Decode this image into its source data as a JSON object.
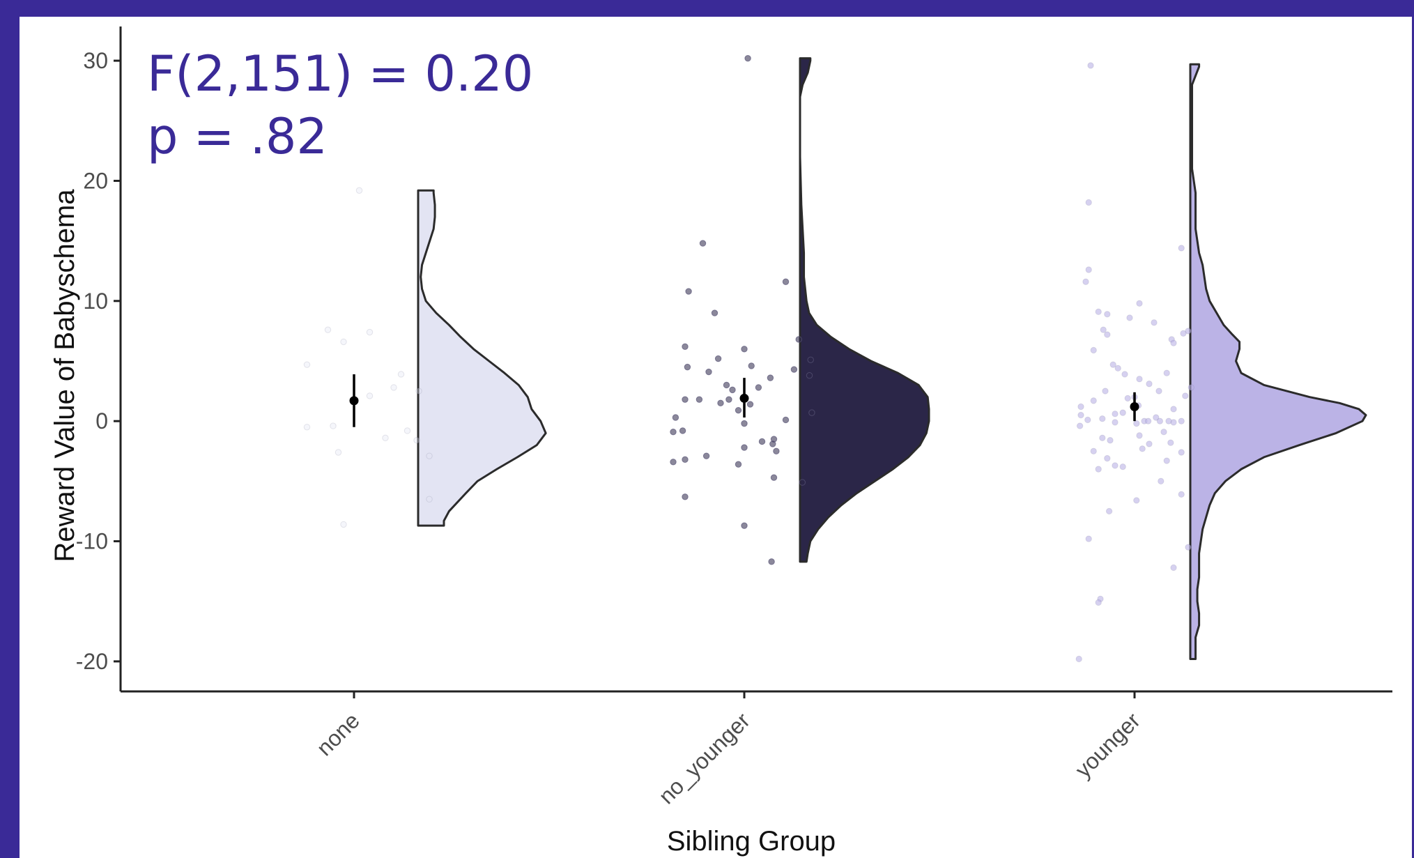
{
  "page": {
    "background": "#3a2a97",
    "panel_background": "#ffffff"
  },
  "chart_data": {
    "type": "raincloud",
    "annotation": {
      "line1": "F(2,151) = 0.20",
      "line2": "p = .82",
      "color": "#3a2a97"
    },
    "xlabel": "Sibling Group",
    "ylabel": "Reward Value of Babyschema",
    "ylim": [
      -22.5,
      32.5
    ],
    "yticks": [
      -20,
      -10,
      0,
      10,
      20,
      30
    ],
    "ytick_labels": [
      "-20",
      "-10",
      "0",
      "10",
      "20",
      "30"
    ],
    "categories": [
      "none",
      "no_younger",
      "younger"
    ],
    "grid": false,
    "series": [
      {
        "category": "none",
        "color": "#e3e4f3",
        "mean": 1.7,
        "ci": [
          -0.5,
          3.9
        ],
        "density": [
          [
            -8.7,
            0.2
          ],
          [
            -8.3,
            0.2
          ],
          [
            -7.5,
            0.24
          ],
          [
            -6,
            0.37
          ],
          [
            -5,
            0.46
          ],
          [
            -4,
            0.61
          ],
          [
            -3,
            0.77
          ],
          [
            -2,
            0.92
          ],
          [
            -1,
            0.99
          ],
          [
            0,
            0.95
          ],
          [
            1,
            0.88
          ],
          [
            2,
            0.85
          ],
          [
            3,
            0.78
          ],
          [
            4,
            0.67
          ],
          [
            5,
            0.55
          ],
          [
            6,
            0.43
          ],
          [
            7,
            0.33
          ],
          [
            8,
            0.24
          ],
          [
            9,
            0.14
          ],
          [
            10,
            0.06
          ],
          [
            11,
            0.03
          ],
          [
            12,
            0.02
          ],
          [
            13,
            0.03
          ],
          [
            14,
            0.06
          ],
          [
            15,
            0.09
          ],
          [
            16,
            0.12
          ],
          [
            17,
            0.13
          ],
          [
            18,
            0.13
          ],
          [
            19,
            0.12
          ],
          [
            19.2,
            0.12
          ]
        ],
        "points": [
          [
            19.2,
            0.05
          ],
          [
            7.6,
            -0.25
          ],
          [
            7.4,
            0.15
          ],
          [
            6.6,
            -0.1
          ],
          [
            4.7,
            -0.45
          ],
          [
            3.9,
            0.45
          ],
          [
            2.8,
            0.38
          ],
          [
            2.5,
            0.62
          ],
          [
            2.1,
            0.15
          ],
          [
            -0.4,
            -0.2
          ],
          [
            -0.5,
            -0.45
          ],
          [
            -1.4,
            0.3
          ],
          [
            -1.6,
            0.6
          ],
          [
            -0.8,
            0.51
          ],
          [
            -2.6,
            -0.15
          ],
          [
            -2.9,
            0.72
          ],
          [
            -6.5,
            0.72
          ],
          [
            -8.6,
            -0.1
          ]
        ]
      },
      {
        "category": "no_younger",
        "color": "#2b2648",
        "mean": 1.9,
        "ci": [
          0.3,
          3.6
        ],
        "density": [
          [
            -11.7,
            0.05
          ],
          [
            -11,
            0.06
          ],
          [
            -10,
            0.08
          ],
          [
            -9,
            0.14
          ],
          [
            -8,
            0.22
          ],
          [
            -7,
            0.32
          ],
          [
            -6,
            0.44
          ],
          [
            -5,
            0.58
          ],
          [
            -4,
            0.72
          ],
          [
            -3,
            0.84
          ],
          [
            -2,
            0.93
          ],
          [
            -1,
            0.98
          ],
          [
            0,
            1.0
          ],
          [
            1,
            1.0
          ],
          [
            2,
            0.99
          ],
          [
            3,
            0.92
          ],
          [
            4,
            0.76
          ],
          [
            5,
            0.55
          ],
          [
            6,
            0.38
          ],
          [
            7,
            0.24
          ],
          [
            8,
            0.13
          ],
          [
            9,
            0.07
          ],
          [
            10,
            0.05
          ],
          [
            11,
            0.04
          ],
          [
            12,
            0.03
          ],
          [
            14,
            0.03
          ],
          [
            16,
            0.02
          ],
          [
            18,
            0.01
          ],
          [
            20,
            0.005
          ],
          [
            22,
            0.0
          ],
          [
            25,
            0.0
          ],
          [
            27,
            0.0
          ],
          [
            28,
            0.02
          ],
          [
            29,
            0.06
          ],
          [
            30,
            0.08
          ],
          [
            30.2,
            0.08
          ]
        ],
        "points": [
          [
            30.2,
            0.03
          ],
          [
            14.8,
            -0.35
          ],
          [
            11.6,
            0.35
          ],
          [
            10.8,
            -0.47
          ],
          [
            9.0,
            -0.25
          ],
          [
            6.8,
            0.46
          ],
          [
            6.2,
            -0.5
          ],
          [
            6.0,
            0.0
          ],
          [
            5.1,
            0.56
          ],
          [
            5.2,
            -0.22
          ],
          [
            4.6,
            0.06
          ],
          [
            4.5,
            -0.48
          ],
          [
            4.3,
            0.42
          ],
          [
            4.1,
            -0.3
          ],
          [
            3.8,
            0.55
          ],
          [
            3.6,
            0.22
          ],
          [
            3.0,
            -0.15
          ],
          [
            2.8,
            0.12
          ],
          [
            2.6,
            -0.1
          ],
          [
            1.8,
            -0.5
          ],
          [
            1.8,
            -0.38
          ],
          [
            1.8,
            -0.13
          ],
          [
            1.5,
            -0.2
          ],
          [
            1.4,
            0.05
          ],
          [
            0.9,
            -0.05
          ],
          [
            0.7,
            0.57
          ],
          [
            0.3,
            -0.58
          ],
          [
            0.1,
            0.35
          ],
          [
            -0.2,
            0.0
          ],
          [
            -0.8,
            -0.52
          ],
          [
            -0.9,
            -0.6
          ],
          [
            -1.5,
            0.25
          ],
          [
            -1.7,
            0.15
          ],
          [
            -1.9,
            0.24
          ],
          [
            -2.2,
            0.0
          ],
          [
            -2.5,
            0.27
          ],
          [
            -2.9,
            -0.32
          ],
          [
            -3.2,
            -0.5
          ],
          [
            -3.4,
            -0.6
          ],
          [
            -3.6,
            -0.05
          ],
          [
            -4.7,
            0.25
          ],
          [
            -5.1,
            0.49
          ],
          [
            -6.3,
            -0.5
          ],
          [
            -8.7,
            0.0
          ],
          [
            -11.7,
            0.23
          ]
        ]
      },
      {
        "category": "younger",
        "color": "#bbb3e6",
        "mean": 1.2,
        "ci": [
          0.0,
          2.4
        ],
        "density": [
          [
            -19.8,
            0.03
          ],
          [
            -19,
            0.03
          ],
          [
            -18,
            0.03
          ],
          [
            -17,
            0.05
          ],
          [
            -16,
            0.05
          ],
          [
            -15,
            0.04
          ],
          [
            -14,
            0.04
          ],
          [
            -13,
            0.05
          ],
          [
            -12,
            0.05
          ],
          [
            -11,
            0.05
          ],
          [
            -10,
            0.06
          ],
          [
            -9,
            0.07
          ],
          [
            -8,
            0.09
          ],
          [
            -7,
            0.11
          ],
          [
            -6,
            0.14
          ],
          [
            -5,
            0.2
          ],
          [
            -4,
            0.29
          ],
          [
            -3,
            0.42
          ],
          [
            -2,
            0.62
          ],
          [
            -1,
            0.83
          ],
          [
            0,
            0.98
          ],
          [
            0.5,
            1.0
          ],
          [
            1,
            0.96
          ],
          [
            1.5,
            0.85
          ],
          [
            2,
            0.68
          ],
          [
            3,
            0.42
          ],
          [
            4,
            0.29
          ],
          [
            5,
            0.26
          ],
          [
            6,
            0.28
          ],
          [
            6.6,
            0.28
          ],
          [
            7.2,
            0.24
          ],
          [
            8,
            0.19
          ],
          [
            9,
            0.15
          ],
          [
            10,
            0.11
          ],
          [
            11,
            0.09
          ],
          [
            12,
            0.08
          ],
          [
            13,
            0.07
          ],
          [
            14,
            0.05
          ],
          [
            15,
            0.04
          ],
          [
            16,
            0.03
          ],
          [
            17,
            0.03
          ],
          [
            18,
            0.03
          ],
          [
            19,
            0.03
          ],
          [
            20,
            0.02
          ],
          [
            21,
            0.01
          ],
          [
            22,
            0.01
          ],
          [
            24,
            0.01
          ],
          [
            26,
            0.01
          ],
          [
            28,
            0.01
          ],
          [
            29.5,
            0.05
          ],
          [
            29.7,
            0.05
          ]
        ],
        "points": [
          [
            29.6,
            -0.45
          ],
          [
            18.2,
            -0.47
          ],
          [
            14.4,
            0.48
          ],
          [
            12.6,
            -0.47
          ],
          [
            11.6,
            -0.5
          ],
          [
            9.8,
            0.05
          ],
          [
            9.1,
            -0.37
          ],
          [
            8.9,
            -0.28
          ],
          [
            8.6,
            -0.05
          ],
          [
            8.2,
            0.2
          ],
          [
            7.6,
            -0.32
          ],
          [
            7.5,
            0.55
          ],
          [
            7.3,
            0.5
          ],
          [
            7.2,
            -0.28
          ],
          [
            6.8,
            0.38
          ],
          [
            6.5,
            0.4
          ],
          [
            5.9,
            -0.42
          ],
          [
            4.7,
            -0.22
          ],
          [
            4.4,
            -0.17
          ],
          [
            4.0,
            0.33
          ],
          [
            3.9,
            -0.1
          ],
          [
            3.5,
            0.05
          ],
          [
            3.1,
            0.15
          ],
          [
            2.8,
            0.58
          ],
          [
            2.5,
            -0.3
          ],
          [
            2.5,
            0.25
          ],
          [
            2.1,
            0.52
          ],
          [
            2.0,
            0.0
          ],
          [
            1.9,
            -0.07
          ],
          [
            1.7,
            -0.42
          ],
          [
            1.3,
            0.04
          ],
          [
            1.2,
            -0.55
          ],
          [
            1.0,
            0.4
          ],
          [
            0.7,
            -0.12
          ],
          [
            0.6,
            -0.2
          ],
          [
            0.5,
            -0.55
          ],
          [
            0.3,
            0.22
          ],
          [
            0.2,
            -0.33
          ],
          [
            0.1,
            -0.48
          ],
          [
            0.0,
            0.1
          ],
          [
            0.0,
            0.14
          ],
          [
            0.0,
            0.48
          ],
          [
            -0.1,
            0.4
          ],
          [
            0.0,
            0.35
          ],
          [
            0.0,
            0.26
          ],
          [
            -0.1,
            -0.2
          ],
          [
            -0.2,
            0.02
          ],
          [
            -0.4,
            -0.56
          ],
          [
            -0.9,
            0.3
          ],
          [
            -1.2,
            0.05
          ],
          [
            -1.4,
            -0.33
          ],
          [
            -1.6,
            -0.25
          ],
          [
            -1.8,
            0.37
          ],
          [
            -1.9,
            0.15
          ],
          [
            -2.3,
            0.08
          ],
          [
            -2.5,
            -0.42
          ],
          [
            -2.6,
            0.48
          ],
          [
            -3.1,
            -0.28
          ],
          [
            -3.3,
            0.33
          ],
          [
            -3.7,
            -0.2
          ],
          [
            -3.8,
            -0.12
          ],
          [
            -4.0,
            -0.37
          ],
          [
            -5.0,
            0.27
          ],
          [
            -6.1,
            0.48
          ],
          [
            -6.6,
            0.02
          ],
          [
            -7.5,
            -0.26
          ],
          [
            -9.8,
            -0.47
          ],
          [
            -10.5,
            0.55
          ],
          [
            -12.2,
            0.4
          ],
          [
            -14.8,
            -0.35
          ],
          [
            -15.1,
            -0.37
          ],
          [
            -19.8,
            -0.57
          ]
        ]
      }
    ]
  }
}
